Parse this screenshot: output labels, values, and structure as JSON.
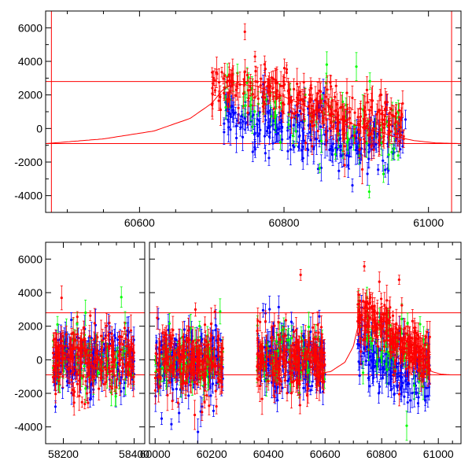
{
  "chart_data": [
    {
      "type": "scatter",
      "title": "",
      "xlabel": "",
      "ylabel": "",
      "xlim": [
        60470,
        61045
      ],
      "ylim": [
        -5000,
        7000
      ],
      "grid": false,
      "x_ticks": [
        60600,
        60800,
        61000
      ],
      "x_tick_labels": [
        "60600",
        "60800",
        "61000"
      ],
      "y_ticks": [
        -4000,
        -2000,
        0,
        2000,
        4000,
        6000
      ],
      "y_tick_labels": [
        "-4000",
        "-2000",
        "0",
        "2000",
        "4000",
        "6000"
      ],
      "hlines": [
        2800,
        -900
      ],
      "vlines": [
        60478,
        61032
      ],
      "model_curve": {
        "color": "#ff0000",
        "x": [
          60470,
          60550,
          60620,
          60670,
          60700,
          60715,
          60730,
          60760,
          60800,
          60850,
          60900,
          60950,
          60980,
          61010,
          61045
        ],
        "y": [
          -900,
          -620,
          -150,
          600,
          1500,
          2300,
          2650,
          2550,
          1900,
          950,
          200,
          -450,
          -720,
          -860,
          -900
        ]
      },
      "series": [
        {
          "color": "#0000ff",
          "x_range": [
            60715,
            60970
          ],
          "trend": {
            "x": [
              60715,
              60760,
              60800,
              60850,
              60900,
              60970
            ],
            "y": [
              900,
              300,
              0,
              -500,
              -900,
              -800
            ]
          },
          "spread": 1800
        },
        {
          "color": "#00ff00",
          "x_range": [
            60715,
            60970
          ],
          "trend": {
            "x": [
              60715,
              60760,
              60800,
              60850,
              60900,
              60970
            ],
            "y": [
              1900,
              1500,
              1000,
              400,
              -100,
              -400
            ]
          },
          "spread": 2200
        },
        {
          "color": "#ff0000",
          "x_range": [
            60700,
            60970
          ],
          "trend": {
            "x": [
              60700,
              60760,
              60800,
              60850,
              60900,
              60970
            ],
            "y": [
              2700,
              2500,
              2000,
              1100,
              500,
              0
            ]
          },
          "spread": 1700
        }
      ]
    },
    {
      "type": "scatter",
      "title": "",
      "xlabel": "",
      "ylabel": "",
      "ylim": [
        -5000,
        7000
      ],
      "grid": false,
      "y_ticks": [
        -4000,
        -2000,
        0,
        2000,
        4000,
        6000
      ],
      "y_tick_labels": [
        "-4000",
        "-2000",
        "0",
        "2000",
        "4000",
        "6000"
      ],
      "hlines": [
        2800,
        -900
      ],
      "segments": [
        {
          "xlim": [
            58150,
            58430
          ],
          "x_ticks": [
            58200,
            58400
          ],
          "x_tick_labels": [
            "58200",
            "58400"
          ]
        },
        {
          "xlim": [
            59980,
            61080
          ],
          "x_ticks": [
            60000,
            60200,
            60400,
            60600,
            60800,
            61000
          ],
          "x_tick_labels": [
            "60000",
            "60200",
            "60400",
            "60600",
            "60800",
            "61000"
          ]
        }
      ],
      "data_ranges": [
        {
          "segment": 0,
          "x_range": [
            58170,
            58400
          ],
          "shape": "flat"
        },
        {
          "segment": 1,
          "x_range": [
            60000,
            60240
          ],
          "shape": "flat"
        },
        {
          "segment": 1,
          "x_range": [
            60360,
            60600
          ],
          "shape": "flat"
        },
        {
          "segment": 1,
          "x_range": [
            60715,
            60970
          ],
          "shape": "decay"
        }
      ],
      "series_colors": [
        "#0000ff",
        "#00ff00",
        "#ff0000"
      ],
      "model_curve": {
        "color": "#ff0000",
        "segment": 1,
        "x": [
          60560,
          60620,
          60670,
          60700,
          60715,
          60730,
          60760,
          60800,
          60850,
          60900,
          60950,
          60980,
          61010,
          61045,
          61080
        ],
        "y": [
          -880,
          -700,
          -150,
          800,
          1900,
          2650,
          2550,
          1900,
          950,
          200,
          -450,
          -720,
          -860,
          -900,
          -900
        ]
      }
    }
  ]
}
